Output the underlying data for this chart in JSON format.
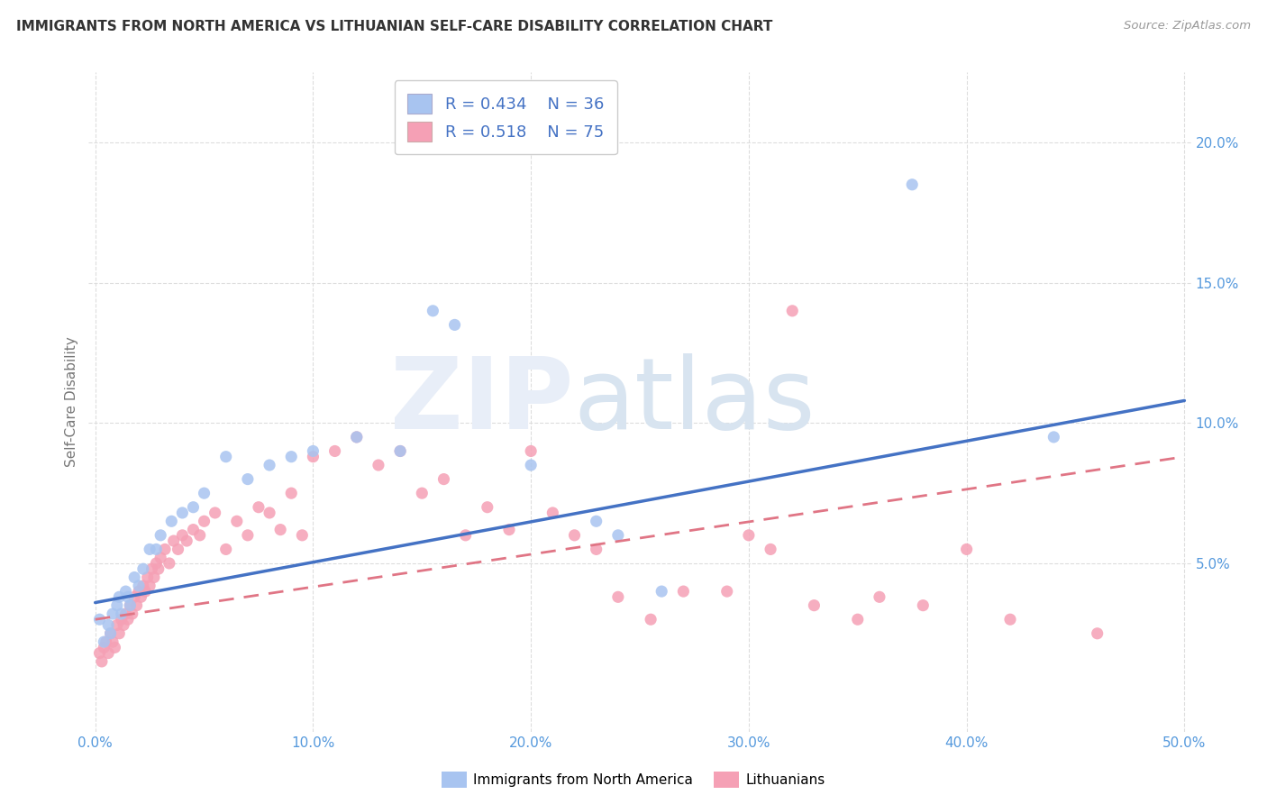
{
  "title": "IMMIGRANTS FROM NORTH AMERICA VS LITHUANIAN SELF-CARE DISABILITY CORRELATION CHART",
  "source": "Source: ZipAtlas.com",
  "ylabel": "Self-Care Disability",
  "xlim": [
    -0.003,
    0.503
  ],
  "ylim": [
    -0.01,
    0.225
  ],
  "xticks": [
    0.0,
    0.1,
    0.2,
    0.3,
    0.4,
    0.5
  ],
  "xticklabels": [
    "0.0%",
    "10.0%",
    "20.0%",
    "30.0%",
    "40.0%",
    "50.0%"
  ],
  "yticks": [
    0.05,
    0.1,
    0.15,
    0.2
  ],
  "yticklabels": [
    "5.0%",
    "10.0%",
    "15.0%",
    "20.0%"
  ],
  "blue_color": "#a8c4f0",
  "pink_color": "#f5a0b5",
  "blue_line_color": "#4472c4",
  "pink_line_color": "#e07585",
  "legend_r1": "R = 0.434",
  "legend_n1": "N = 36",
  "legend_r2": "R = 0.518",
  "legend_n2": "N = 75",
  "blue_x": [
    0.002,
    0.004,
    0.006,
    0.007,
    0.008,
    0.01,
    0.011,
    0.012,
    0.014,
    0.015,
    0.016,
    0.018,
    0.02,
    0.022,
    0.025,
    0.028,
    0.03,
    0.035,
    0.04,
    0.045,
    0.05,
    0.06,
    0.07,
    0.08,
    0.09,
    0.1,
    0.12,
    0.14,
    0.155,
    0.165,
    0.2,
    0.23,
    0.24,
    0.26,
    0.375,
    0.44
  ],
  "blue_y": [
    0.03,
    0.022,
    0.028,
    0.025,
    0.032,
    0.035,
    0.038,
    0.032,
    0.04,
    0.038,
    0.035,
    0.045,
    0.042,
    0.048,
    0.055,
    0.055,
    0.06,
    0.065,
    0.068,
    0.07,
    0.075,
    0.088,
    0.08,
    0.085,
    0.088,
    0.09,
    0.095,
    0.09,
    0.14,
    0.135,
    0.085,
    0.065,
    0.06,
    0.04,
    0.185,
    0.095
  ],
  "pink_x": [
    0.002,
    0.003,
    0.004,
    0.005,
    0.006,
    0.007,
    0.008,
    0.009,
    0.01,
    0.011,
    0.012,
    0.013,
    0.014,
    0.015,
    0.016,
    0.017,
    0.018,
    0.019,
    0.02,
    0.021,
    0.022,
    0.023,
    0.024,
    0.025,
    0.026,
    0.027,
    0.028,
    0.029,
    0.03,
    0.032,
    0.034,
    0.036,
    0.038,
    0.04,
    0.042,
    0.045,
    0.048,
    0.05,
    0.055,
    0.06,
    0.065,
    0.07,
    0.075,
    0.08,
    0.085,
    0.09,
    0.095,
    0.1,
    0.11,
    0.12,
    0.13,
    0.14,
    0.15,
    0.16,
    0.17,
    0.18,
    0.19,
    0.2,
    0.21,
    0.22,
    0.23,
    0.24,
    0.255,
    0.27,
    0.29,
    0.3,
    0.31,
    0.32,
    0.33,
    0.35,
    0.36,
    0.38,
    0.4,
    0.42,
    0.46
  ],
  "pink_y": [
    0.018,
    0.015,
    0.02,
    0.022,
    0.018,
    0.025,
    0.022,
    0.02,
    0.028,
    0.025,
    0.03,
    0.028,
    0.032,
    0.03,
    0.035,
    0.032,
    0.038,
    0.035,
    0.04,
    0.038,
    0.042,
    0.04,
    0.045,
    0.042,
    0.048,
    0.045,
    0.05,
    0.048,
    0.052,
    0.055,
    0.05,
    0.058,
    0.055,
    0.06,
    0.058,
    0.062,
    0.06,
    0.065,
    0.068,
    0.055,
    0.065,
    0.06,
    0.07,
    0.068,
    0.062,
    0.075,
    0.06,
    0.088,
    0.09,
    0.095,
    0.085,
    0.09,
    0.075,
    0.08,
    0.06,
    0.07,
    0.062,
    0.09,
    0.068,
    0.06,
    0.055,
    0.038,
    0.03,
    0.04,
    0.04,
    0.06,
    0.055,
    0.14,
    0.035,
    0.03,
    0.038,
    0.035,
    0.055,
    0.03,
    0.025
  ],
  "blue_line_x0": 0.0,
  "blue_line_y0": 0.036,
  "blue_line_x1": 0.5,
  "blue_line_y1": 0.108,
  "pink_line_x0": 0.0,
  "pink_line_y0": 0.03,
  "pink_line_x1": 0.5,
  "pink_line_y1": 0.088
}
